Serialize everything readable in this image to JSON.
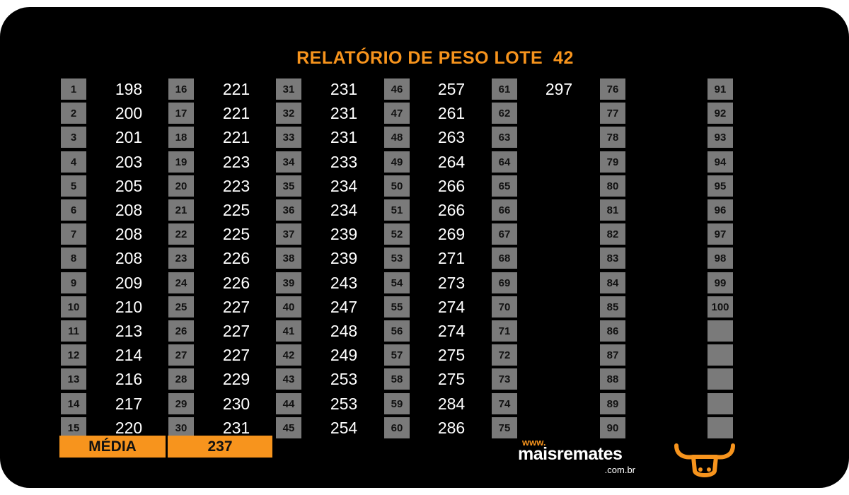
{
  "title": "RELATÓRIO DE PESO LOTE  42",
  "columns": [
    {
      "numbers": [
        "1",
        "2",
        "3",
        "4",
        "5",
        "6",
        "7",
        "8",
        "9",
        "10",
        "11",
        "12",
        "13",
        "14",
        "15"
      ],
      "values": [
        "198",
        "200",
        "201",
        "203",
        "205",
        "208",
        "208",
        "208",
        "209",
        "210",
        "213",
        "214",
        "216",
        "217",
        "220"
      ]
    },
    {
      "numbers": [
        "16",
        "17",
        "18",
        "19",
        "20",
        "21",
        "22",
        "23",
        "24",
        "25",
        "26",
        "27",
        "28",
        "29",
        "30"
      ],
      "values": [
        "221",
        "221",
        "221",
        "223",
        "223",
        "225",
        "225",
        "226",
        "226",
        "227",
        "227",
        "227",
        "229",
        "230",
        "231"
      ]
    },
    {
      "numbers": [
        "31",
        "32",
        "33",
        "34",
        "35",
        "36",
        "37",
        "38",
        "39",
        "40",
        "41",
        "42",
        "43",
        "44",
        "45"
      ],
      "values": [
        "231",
        "231",
        "231",
        "233",
        "234",
        "234",
        "239",
        "239",
        "243",
        "247",
        "248",
        "249",
        "253",
        "253",
        "254"
      ]
    },
    {
      "numbers": [
        "46",
        "47",
        "48",
        "49",
        "50",
        "51",
        "52",
        "53",
        "54",
        "55",
        "56",
        "57",
        "58",
        "59",
        "60"
      ],
      "values": [
        "257",
        "261",
        "263",
        "264",
        "266",
        "266",
        "269",
        "271",
        "273",
        "274",
        "274",
        "275",
        "275",
        "284",
        "286"
      ]
    },
    {
      "numbers": [
        "61",
        "62",
        "63",
        "64",
        "65",
        "66",
        "67",
        "68",
        "69",
        "70",
        "71",
        "72",
        "73",
        "74",
        "75"
      ],
      "values": [
        "297",
        "",
        "",
        "",
        "",
        "",
        "",
        "",
        "",
        "",
        "",
        "",
        "",
        "",
        ""
      ]
    },
    {
      "numbers": [
        "76",
        "77",
        "78",
        "79",
        "80",
        "81",
        "82",
        "83",
        "84",
        "85",
        "86",
        "87",
        "88",
        "89",
        "90"
      ],
      "values": []
    },
    {
      "numbers": [
        "91",
        "92",
        "93",
        "94",
        "95",
        "96",
        "97",
        "98",
        "99",
        "100",
        "",
        "",
        "",
        "",
        ""
      ],
      "values": []
    }
  ],
  "average": {
    "label": "MÉDIA",
    "value": "237"
  },
  "logo": {
    "www": "www.",
    "name": "maisremates",
    "domain": ".com.br"
  },
  "colors": {
    "accent": "#f7941d",
    "box": "#7a7a7a",
    "background": "#000000"
  },
  "icons": {
    "brand": "bull-head-icon"
  }
}
